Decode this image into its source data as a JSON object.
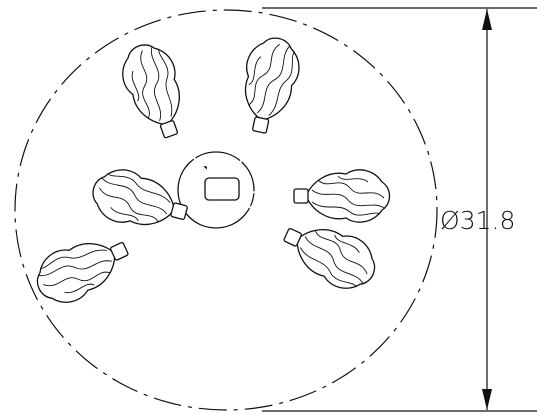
{
  "dimension": {
    "symbol": "Ø",
    "value": "31.8"
  }
}
